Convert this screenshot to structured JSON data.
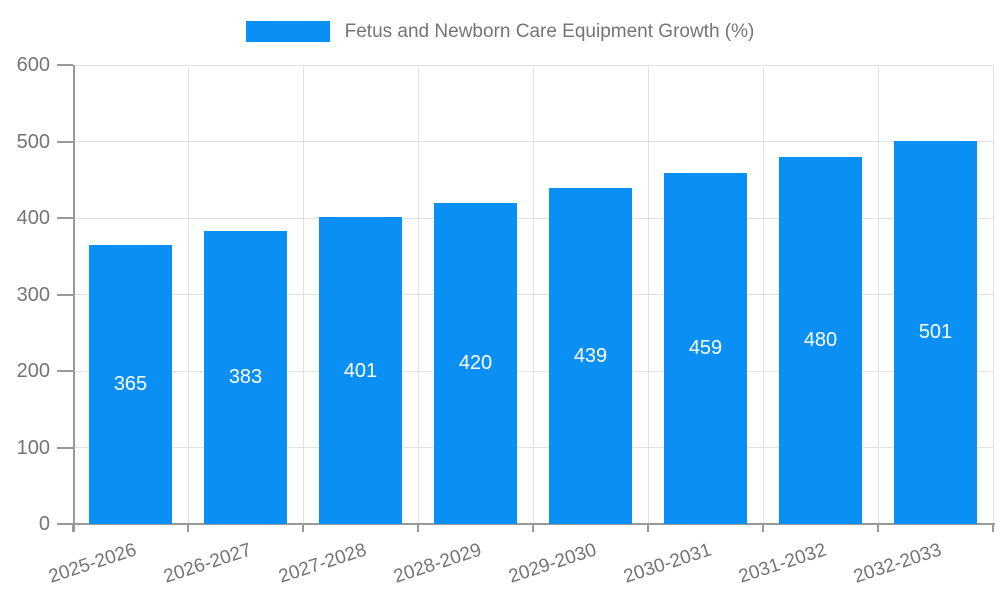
{
  "legend": {
    "label": "Fetus and Newborn Care Equipment Growth (%)"
  },
  "chart_data": {
    "type": "bar",
    "title": "Fetus and Newborn Care Equipment Growth (%)",
    "categories": [
      "2025-2026",
      "2026-2027",
      "2027-2028",
      "2028-2029",
      "2029-2030",
      "2030-2031",
      "2031-2032",
      "2032-2033"
    ],
    "values": [
      365,
      383,
      401,
      420,
      439,
      459,
      480,
      501
    ],
    "xlabel": "",
    "ylabel": "",
    "ylim": [
      0,
      600
    ],
    "yticks": [
      0,
      100,
      200,
      300,
      400,
      500,
      600
    ],
    "grid": true,
    "legend_position": "top-center",
    "x_label_rotation_deg": -18
  },
  "colors": {
    "bar": "#0a90f5",
    "axis": "#999999",
    "grid": "#e2e2e2",
    "text": "#757575",
    "value_text": "#ffffff"
  }
}
